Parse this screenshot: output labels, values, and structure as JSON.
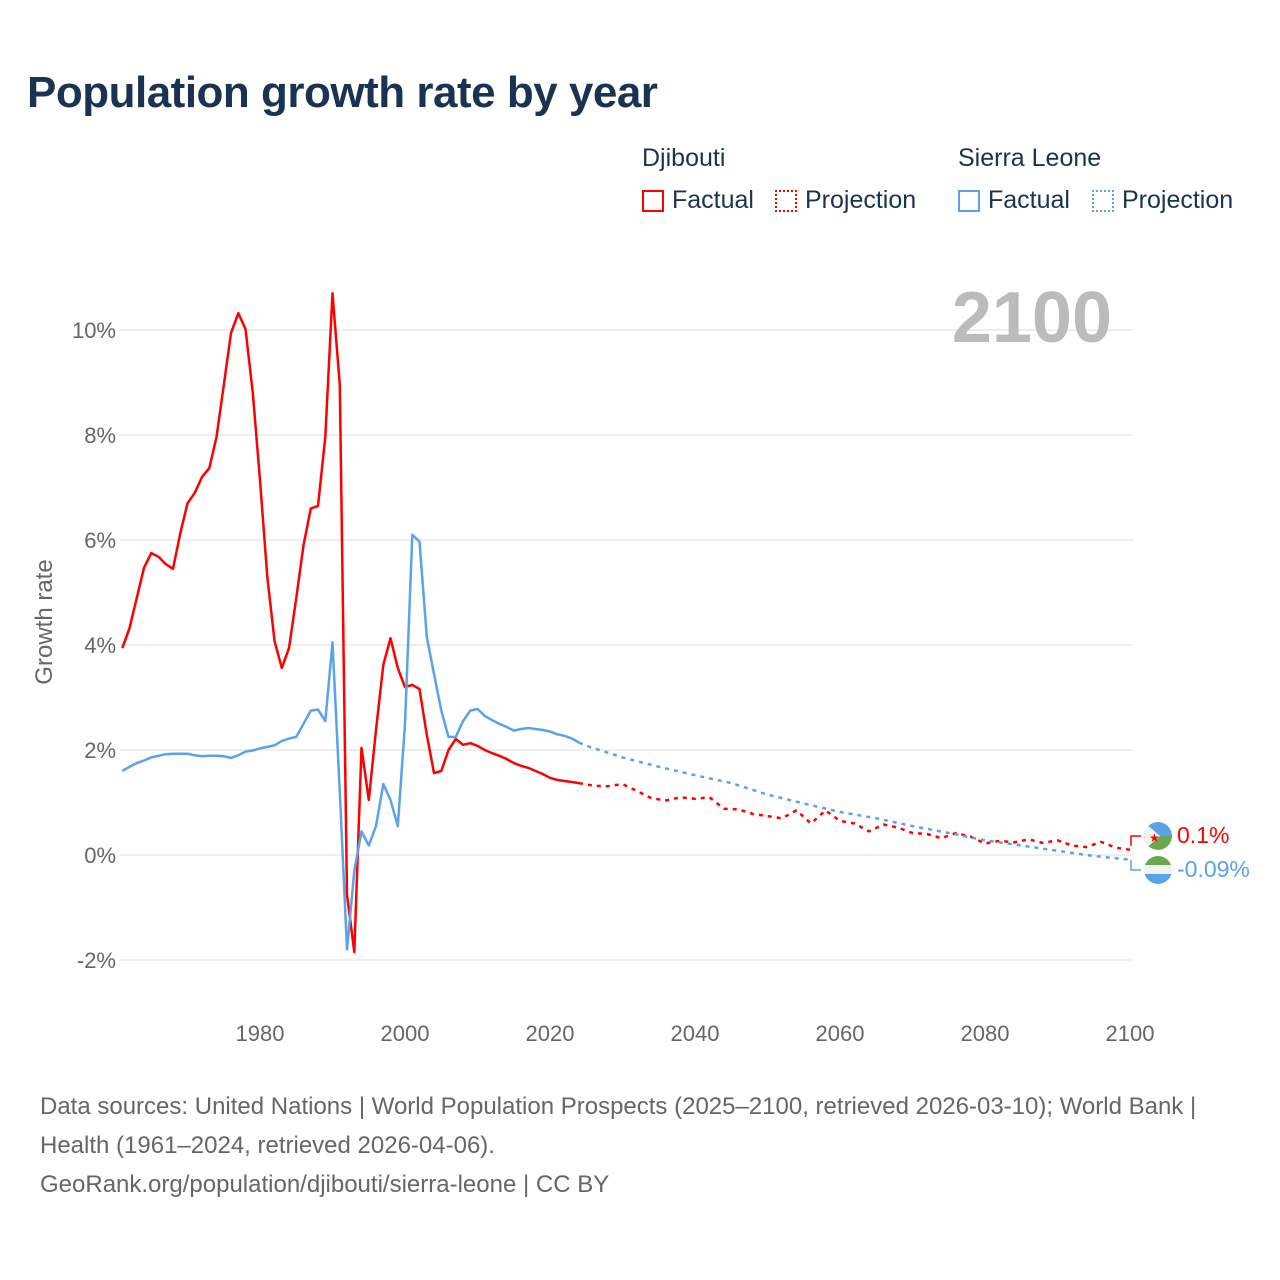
{
  "title": "Population growth rate by year",
  "legend": {
    "groups": [
      {
        "name": "Djibouti",
        "color": "#ff0000",
        "factual": "Factual",
        "projection": "Projection"
      },
      {
        "name": "Sierra Leone",
        "color": "#5aa3ea",
        "factual": "Factual",
        "projection": "Projection"
      }
    ]
  },
  "year_label": "2100",
  "end_labels": {
    "djibouti": "0.1%",
    "sierra_leone": "-0.09%"
  },
  "footer": {
    "line1": "Data sources: United Nations | World Population Prospects (2025–2100, retrieved 2026-03-10); World Bank | Health (1961–2024, retrieved 2026-04-06).",
    "line2": "GeoRank.org/population/djibouti/sierra-leone | CC BY"
  },
  "chart_data": {
    "type": "line",
    "title": "Population growth rate by year",
    "xlabel": "",
    "ylabel": "Growth rate",
    "xlim": [
      1961,
      2100
    ],
    "ylim": [
      -3,
      11
    ],
    "x_ticks": [
      1980,
      2000,
      2020,
      2040,
      2060,
      2080,
      2100
    ],
    "x_tick_labels": [
      "1980",
      "2000",
      "2020",
      "2040",
      "2060",
      "2080",
      "2100"
    ],
    "y_ticks": [
      -2,
      0,
      2,
      4,
      6,
      8,
      10
    ],
    "y_tick_labels": [
      "-2%",
      "0%",
      "2%",
      "4%",
      "6%",
      "8%",
      "10%"
    ],
    "grid": true,
    "legend_position": "top-right",
    "series": [
      {
        "name": "Djibouti Factual",
        "color": "#ff0000",
        "dashed": false,
        "x": [
          1961,
          1962,
          1963,
          1964,
          1965,
          1966,
          1967,
          1968,
          1969,
          1970,
          1971,
          1972,
          1973,
          1974,
          1975,
          1976,
          1977,
          1978,
          1979,
          1980,
          1981,
          1982,
          1983,
          1984,
          1985,
          1986,
          1987,
          1988,
          1989,
          1990,
          1991,
          1992,
          1993,
          1994,
          1995,
          1996,
          1997,
          1998,
          1999,
          2000,
          2001,
          2002,
          2003,
          2004,
          2005,
          2006,
          2007,
          2008,
          2009,
          2010,
          2011,
          2012,
          2013,
          2014,
          2015,
          2016,
          2017,
          2018,
          2019,
          2020,
          2021,
          2022,
          2023,
          2024
        ],
        "y": [
          3.94,
          4.32,
          4.9,
          5.47,
          5.75,
          5.68,
          5.54,
          5.45,
          6.13,
          6.7,
          6.9,
          7.2,
          7.37,
          7.96,
          8.95,
          9.94,
          10.32,
          10.02,
          8.8,
          7.14,
          5.3,
          4.08,
          3.56,
          3.94,
          4.9,
          5.9,
          6.6,
          6.65,
          7.96,
          10.7,
          8.95,
          -0.76,
          -1.85,
          2.04,
          1.05,
          2.38,
          3.62,
          4.13,
          3.56,
          3.2,
          3.24,
          3.16,
          2.29,
          1.56,
          1.6,
          2.0,
          2.21,
          2.1,
          2.13,
          2.08,
          2.0,
          1.94,
          1.89,
          1.83,
          1.75,
          1.7,
          1.66,
          1.6,
          1.54,
          1.47,
          1.43,
          1.41,
          1.39,
          1.37
        ]
      },
      {
        "name": "Djibouti Projection",
        "color": "#ff0000",
        "dashed": true,
        "x": [
          2024,
          2026,
          2028,
          2030,
          2032,
          2034,
          2036,
          2038,
          2040,
          2042,
          2044,
          2046,
          2048,
          2050,
          2052,
          2054,
          2056,
          2058,
          2060,
          2062,
          2064,
          2066,
          2068,
          2070,
          2072,
          2074,
          2076,
          2078,
          2080,
          2082,
          2084,
          2086,
          2088,
          2090,
          2092,
          2094,
          2096,
          2098,
          2100
        ],
        "y": [
          1.37,
          1.32,
          1.31,
          1.35,
          1.22,
          1.08,
          1.04,
          1.1,
          1.07,
          1.1,
          0.88,
          0.87,
          0.78,
          0.74,
          0.7,
          0.85,
          0.6,
          0.85,
          0.65,
          0.6,
          0.45,
          0.58,
          0.52,
          0.42,
          0.4,
          0.32,
          0.42,
          0.35,
          0.22,
          0.27,
          0.24,
          0.3,
          0.23,
          0.28,
          0.18,
          0.15,
          0.25,
          0.14,
          0.1
        ]
      },
      {
        "name": "Sierra Leone Factual",
        "color": "#5aa3ea",
        "dashed": false,
        "x": [
          1961,
          1962,
          1963,
          1964,
          1965,
          1966,
          1967,
          1968,
          1969,
          1970,
          1971,
          1972,
          1973,
          1974,
          1975,
          1976,
          1977,
          1978,
          1979,
          1980,
          1981,
          1982,
          1983,
          1984,
          1985,
          1986,
          1987,
          1988,
          1989,
          1990,
          1991,
          1992,
          1993,
          1994,
          1995,
          1996,
          1997,
          1998,
          1999,
          2000,
          2001,
          2002,
          2003,
          2004,
          2005,
          2006,
          2007,
          2008,
          2009,
          2010,
          2011,
          2012,
          2013,
          2014,
          2015,
          2016,
          2017,
          2018,
          2019,
          2020,
          2021,
          2022,
          2023,
          2024
        ],
        "y": [
          1.6,
          1.68,
          1.75,
          1.8,
          1.86,
          1.89,
          1.92,
          1.93,
          1.93,
          1.93,
          1.9,
          1.88,
          1.89,
          1.89,
          1.88,
          1.85,
          1.9,
          1.97,
          1.99,
          2.03,
          2.06,
          2.09,
          2.17,
          2.22,
          2.25,
          2.5,
          2.75,
          2.77,
          2.55,
          4.05,
          1.2,
          -1.8,
          -0.3,
          0.45,
          0.18,
          0.55,
          1.35,
          1.05,
          0.55,
          2.5,
          6.1,
          5.97,
          4.15,
          3.45,
          2.75,
          2.25,
          2.25,
          2.55,
          2.75,
          2.78,
          2.65,
          2.57,
          2.5,
          2.44,
          2.37,
          2.4,
          2.42,
          2.4,
          2.38,
          2.35,
          2.3,
          2.27,
          2.22,
          2.14
        ]
      },
      {
        "name": "Sierra Leone Projection",
        "color": "#5aa3ea",
        "dashed": true,
        "x": [
          2024,
          2025,
          2030,
          2035,
          2040,
          2045,
          2050,
          2055,
          2060,
          2065,
          2070,
          2075,
          2080,
          2085,
          2090,
          2095,
          2100
        ],
        "y": [
          2.14,
          2.08,
          1.86,
          1.68,
          1.52,
          1.37,
          1.15,
          0.98,
          0.82,
          0.7,
          0.55,
          0.42,
          0.28,
          0.18,
          0.08,
          -0.02,
          -0.09
        ]
      }
    ]
  }
}
